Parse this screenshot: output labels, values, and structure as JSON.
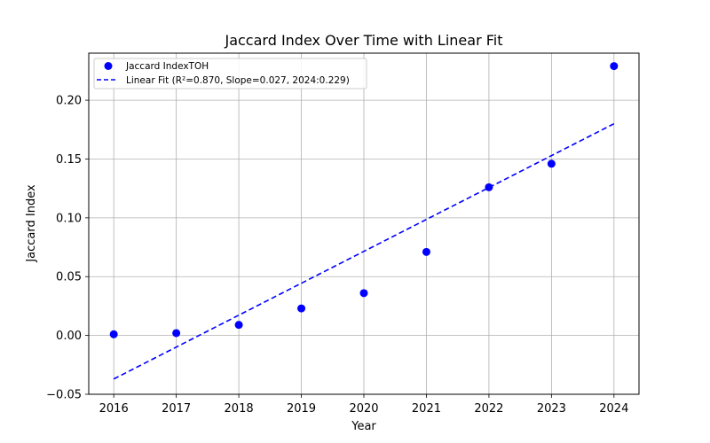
{
  "chart_data": {
    "type": "scatter",
    "title": "Jaccard Index Over Time with Linear Fit",
    "xlabel": "Year",
    "ylabel": "Jaccard Index",
    "xlim": [
      2015.6,
      2024.4
    ],
    "ylim": [
      -0.05,
      0.24
    ],
    "x_ticks": [
      "2016",
      "2017",
      "2018",
      "2019",
      "2020",
      "2021",
      "2022",
      "2023",
      "2024"
    ],
    "y_ticks": [
      "−0.05",
      "0.00",
      "0.05",
      "0.10",
      "0.15",
      "0.20"
    ],
    "y_tick_values": [
      -0.05,
      0.0,
      0.05,
      0.1,
      0.15,
      0.2
    ],
    "grid": true,
    "legend_position": "top-left",
    "series": [
      {
        "name": "Jaccard IndexTOH",
        "kind": "scatter",
        "color": "#0000ff",
        "x": [
          2016,
          2017,
          2018,
          2019,
          2020,
          2021,
          2022,
          2023,
          2024
        ],
        "y": [
          0.001,
          0.002,
          0.009,
          0.023,
          0.036,
          0.071,
          0.126,
          0.146,
          0.229
        ]
      },
      {
        "name": "Linear Fit (R²=0.870, Slope=0.027, 2024:0.229)",
        "kind": "line",
        "style": "dashed",
        "color": "#0000ff",
        "x": [
          2016,
          2024
        ],
        "y": [
          -0.037,
          0.18
        ]
      }
    ]
  }
}
